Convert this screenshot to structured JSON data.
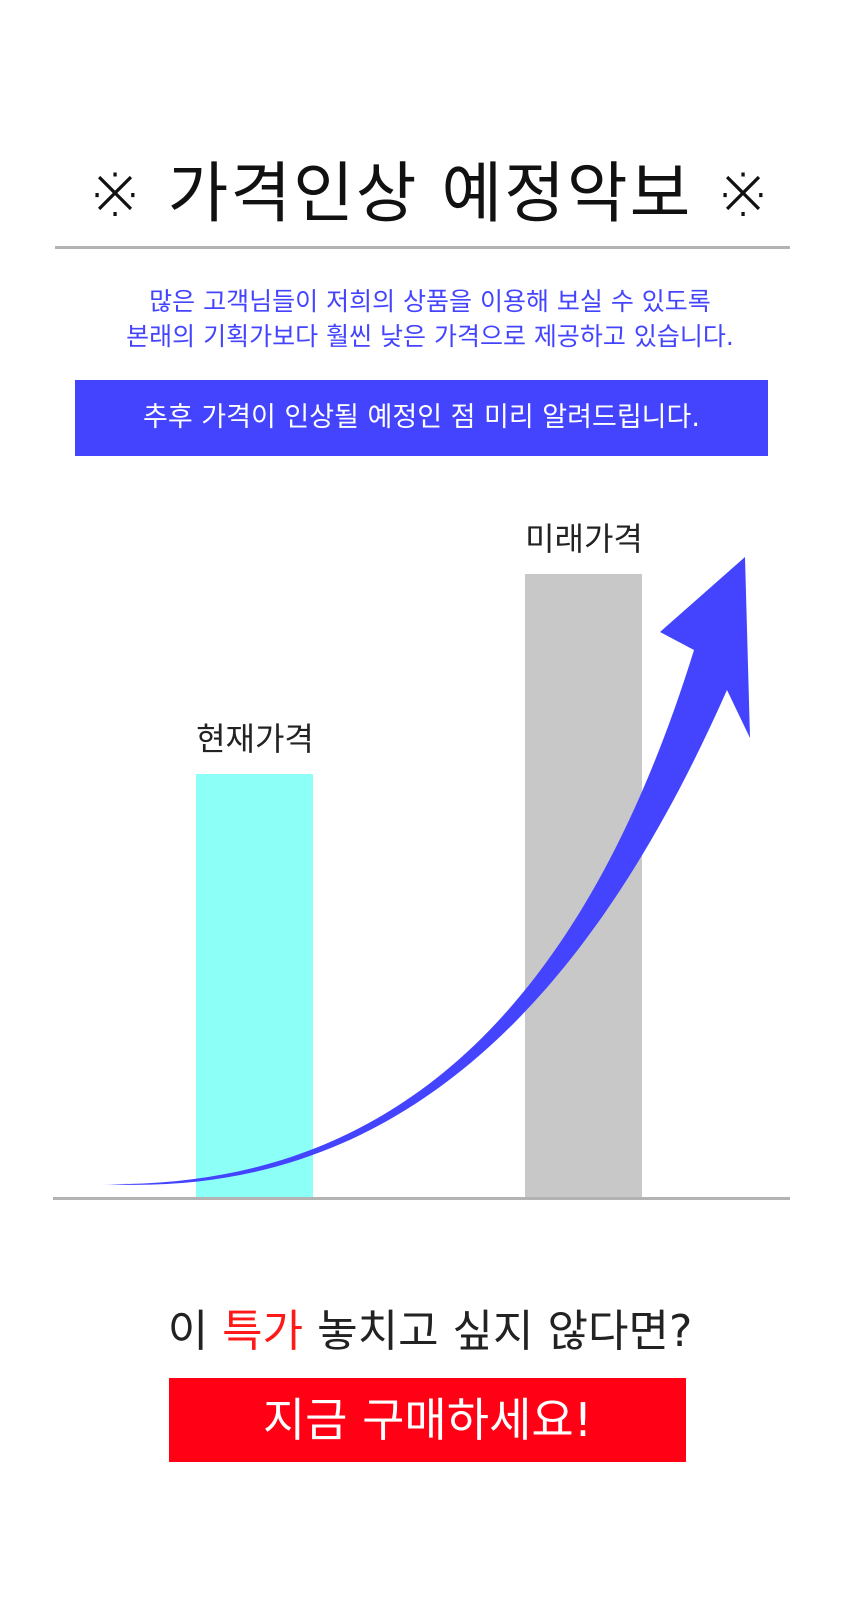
{
  "title": "※ 가격인상 예정악보 ※",
  "intro": {
    "line1": "많은 고객님들이 저희의 상품을 이용해 보실 수 있도록",
    "line2": "본래의 기획가보다 훨씬 낮은 가격으로 제공하고 있습니다."
  },
  "notice": "추후 가격이 인상될 예정인 점 미리 알려드립니다.",
  "graphic": {
    "bars": [
      {
        "label": "현재가격",
        "color": "#8cfff7"
      },
      {
        "label": "미래가격",
        "color": "#c8c8c8"
      }
    ],
    "arrow_color": "#4444ff",
    "arrow_icon": "rising-arrow-icon"
  },
  "question": {
    "before": "이 ",
    "highlight": "특가",
    "after": " 놓치고 싶지 않다면?"
  },
  "cta": "지금 구매하세요!",
  "colors": {
    "accent_blue": "#4444ff",
    "cta_red": "#ff0015",
    "highlight_red": "#ff1a1a"
  }
}
